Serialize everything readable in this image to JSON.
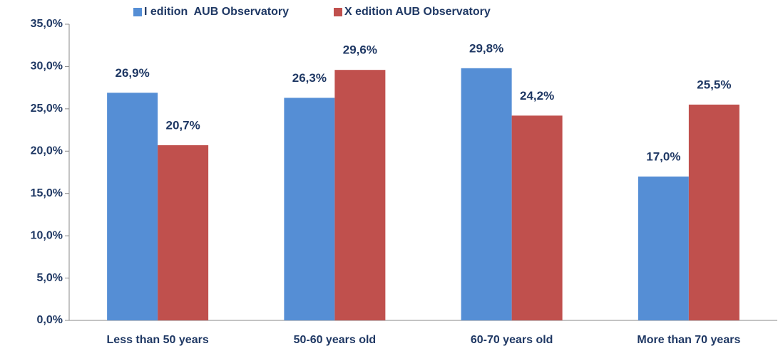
{
  "chart_data": {
    "type": "bar",
    "categories": [
      "Less than 50 years",
      "50-60 years old",
      "60-70 years old",
      "More than 70 years"
    ],
    "series": [
      {
        "name": "I edition  AUB Observatory",
        "color": "#558ed5",
        "values": [
          26.9,
          26.3,
          29.8,
          17.0
        ],
        "value_labels": [
          "26,9%",
          "26,3%",
          "29,8%",
          "17,0%"
        ]
      },
      {
        "name": "X edition AUB Observatory",
        "color": "#c0504d",
        "values": [
          20.7,
          29.6,
          24.2,
          25.5
        ],
        "value_labels": [
          "20,7%",
          "29,6%",
          "24,2%",
          "25,5%"
        ]
      }
    ],
    "ylim": [
      0,
      35
    ],
    "yticks": [
      {
        "value": 0,
        "label": "0,0%"
      },
      {
        "value": 5,
        "label": "5,0%"
      },
      {
        "value": 10,
        "label": "10,0%"
      },
      {
        "value": 15,
        "label": "15,0%"
      },
      {
        "value": 20,
        "label": "20,0%"
      },
      {
        "value": 25,
        "label": "25,0%"
      },
      {
        "value": 30,
        "label": "30,0%"
      },
      {
        "value": 35,
        "label": "35,0%"
      }
    ],
    "grid": false,
    "legend": "top"
  }
}
